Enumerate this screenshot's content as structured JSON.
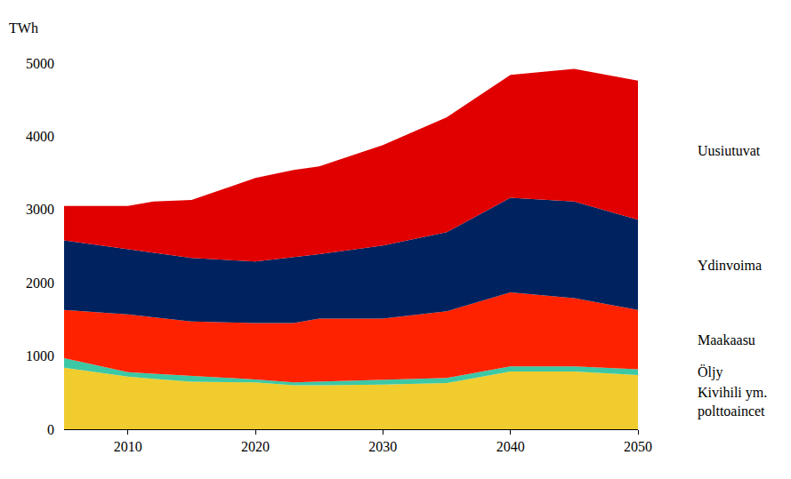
{
  "chart_data": {
    "type": "area",
    "stacked": true,
    "grid": false,
    "ylabel": "TWh",
    "x": [
      2005,
      2010,
      2012,
      2015,
      2020,
      2023,
      2025,
      2030,
      2035,
      2040,
      2045,
      2050
    ],
    "xlim": [
      2005,
      2050
    ],
    "xticks": [
      2010,
      2020,
      2030,
      2040,
      2050
    ],
    "ylim": [
      0,
      5000
    ],
    "yticks": [
      0,
      1000,
      2000,
      3000,
      4000,
      5000
    ],
    "series": [
      {
        "name": "Kivihili ym.\npolttoaincet",
        "color": "#F0CC2E",
        "values": [
          840,
          720,
          690,
          650,
          640,
          600,
          600,
          610,
          630,
          790,
          790,
          740
        ]
      },
      {
        "name": "Öljy",
        "color": "#3CC7A5",
        "values": [
          130,
          60,
          70,
          80,
          40,
          40,
          50,
          60,
          70,
          70,
          70,
          80
        ]
      },
      {
        "name": "Maakaasu",
        "color": "#FF2200",
        "values": [
          660,
          790,
          770,
          740,
          770,
          810,
          860,
          840,
          910,
          1010,
          930,
          810
        ]
      },
      {
        "name": "Ydinvoima",
        "color": "#00235F",
        "values": [
          950,
          890,
          880,
          870,
          840,
          900,
          880,
          1000,
          1080,
          1290,
          1320,
          1230
        ]
      },
      {
        "name": "Uusiutuvat",
        "color": "#E00000",
        "values": [
          470,
          590,
          700,
          790,
          1140,
          1190,
          1200,
          1370,
          1570,
          1680,
          1810,
          1900
        ]
      }
    ]
  }
}
